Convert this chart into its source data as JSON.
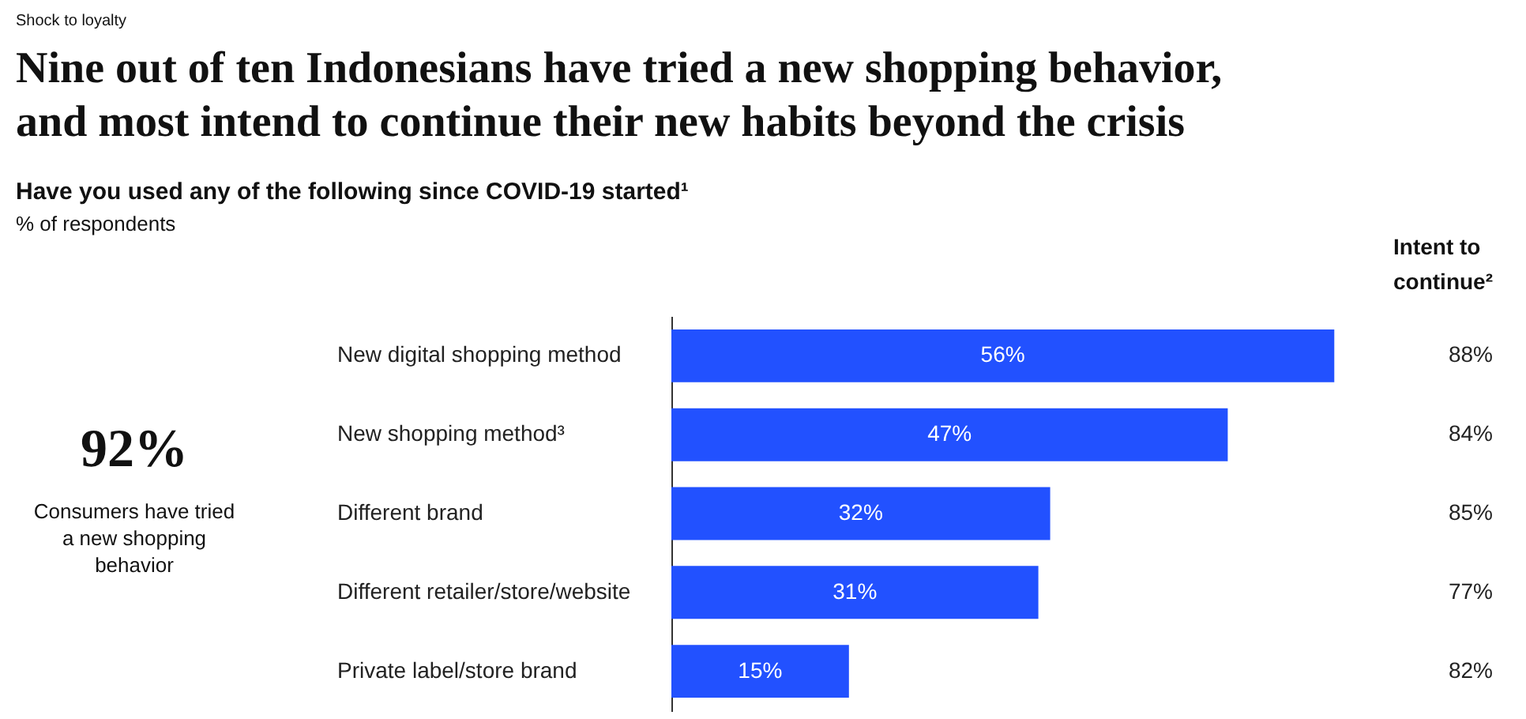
{
  "chart_data": {
    "type": "bar",
    "orientation": "horizontal",
    "title": "Nine out of ten Indonesians have tried a new shopping behavior,\nand most intend to continue their new habits beyond the crisis",
    "subtitle": "Have you used any of the following since COVID-19 started¹",
    "categories": [
      "New digital shopping method",
      "New shopping method³",
      "Different brand",
      "Different retailer/store/website",
      "Private label/store brand"
    ],
    "values": [
      56,
      47,
      32,
      31,
      15
    ],
    "value_labels": [
      "56%",
      "47%",
      "32%",
      "31%",
      "15%"
    ],
    "color": "#2251ff",
    "annotations": [
      "Shock to loyalty",
      "% of respondents",
      "Intent to\ncontinue²",
      "92%",
      "Consumers have tried\na new shopping\nbehavior",
      "88%",
      "84%",
      "85%",
      "77%",
      "82%"
    ]
  }
}
